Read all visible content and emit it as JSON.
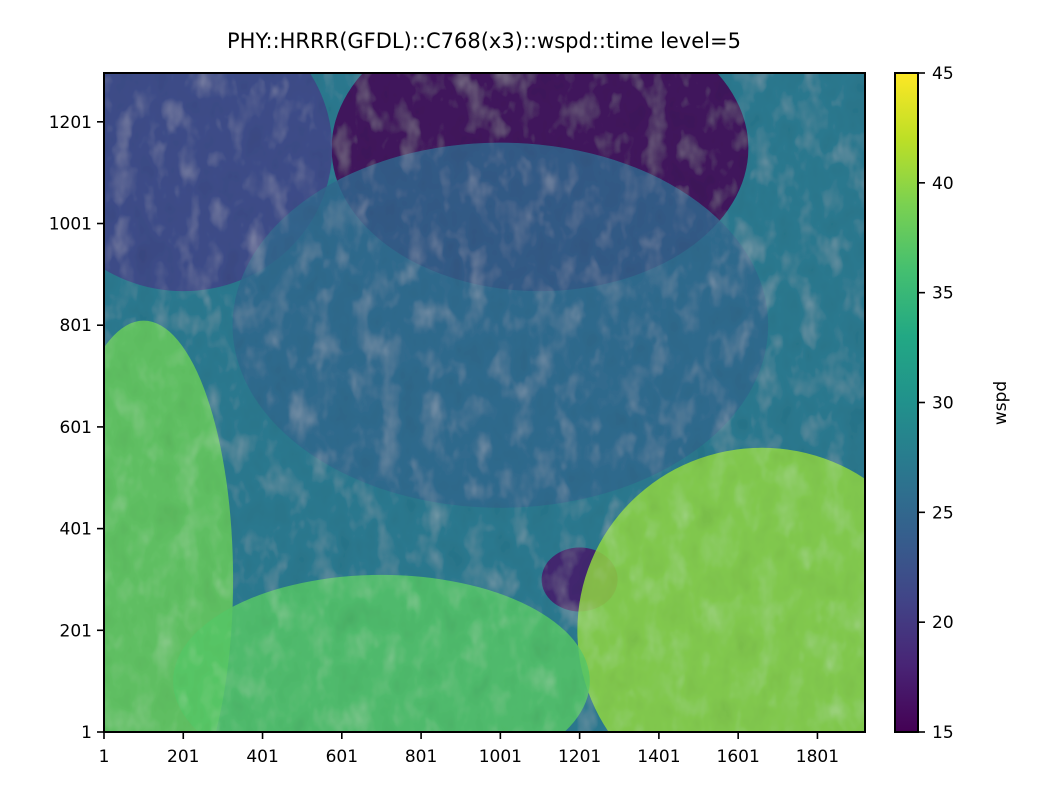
{
  "chart_data": {
    "type": "heatmap",
    "title": "PHY::HRRR(GFDL)::C768(x3)::wspd::time level=5",
    "xlabel": "",
    "ylabel": "",
    "x_ticks": [
      "1",
      "201",
      "401",
      "601",
      "801",
      "1001",
      "1201",
      "1401",
      "1601",
      "1801"
    ],
    "y_ticks": [
      "1",
      "201",
      "401",
      "601",
      "801",
      "1001",
      "1201"
    ],
    "xlim": [
      1,
      1921
    ],
    "ylim": [
      1,
      1297
    ],
    "colormap": "viridis",
    "colorbar": {
      "label": "wspd",
      "ticks": [
        "15",
        "20",
        "25",
        "30",
        "35",
        "40",
        "45"
      ],
      "range": [
        15,
        45
      ],
      "colors": [
        "#440154",
        "#482475",
        "#414487",
        "#355f8d",
        "#2a788e",
        "#21918c",
        "#22a884",
        "#44bf70",
        "#7ad151",
        "#bddf26",
        "#fde725"
      ]
    },
    "field_summary": [
      {
        "region": "top-center (x 801-1401, y 1001-1297)",
        "approx_value": 15
      },
      {
        "region": "top-left (x 1-401, y 1001-1297)",
        "approx_value": 21
      },
      {
        "region": "center (x 601-1401, y 601-1001)",
        "approx_value": 25
      },
      {
        "region": "left edge (x 1-201, y 1-601)",
        "approx_value": 38
      },
      {
        "region": "storm eye (x ~1201, y ~301)",
        "approx_value": 17
      },
      {
        "region": "bottom-right (x 1401-1921, y 1-401)",
        "approx_value": 40
      },
      {
        "region": "bottom-center (x 401-1001, y 1-201)",
        "approx_value": 37
      }
    ]
  }
}
